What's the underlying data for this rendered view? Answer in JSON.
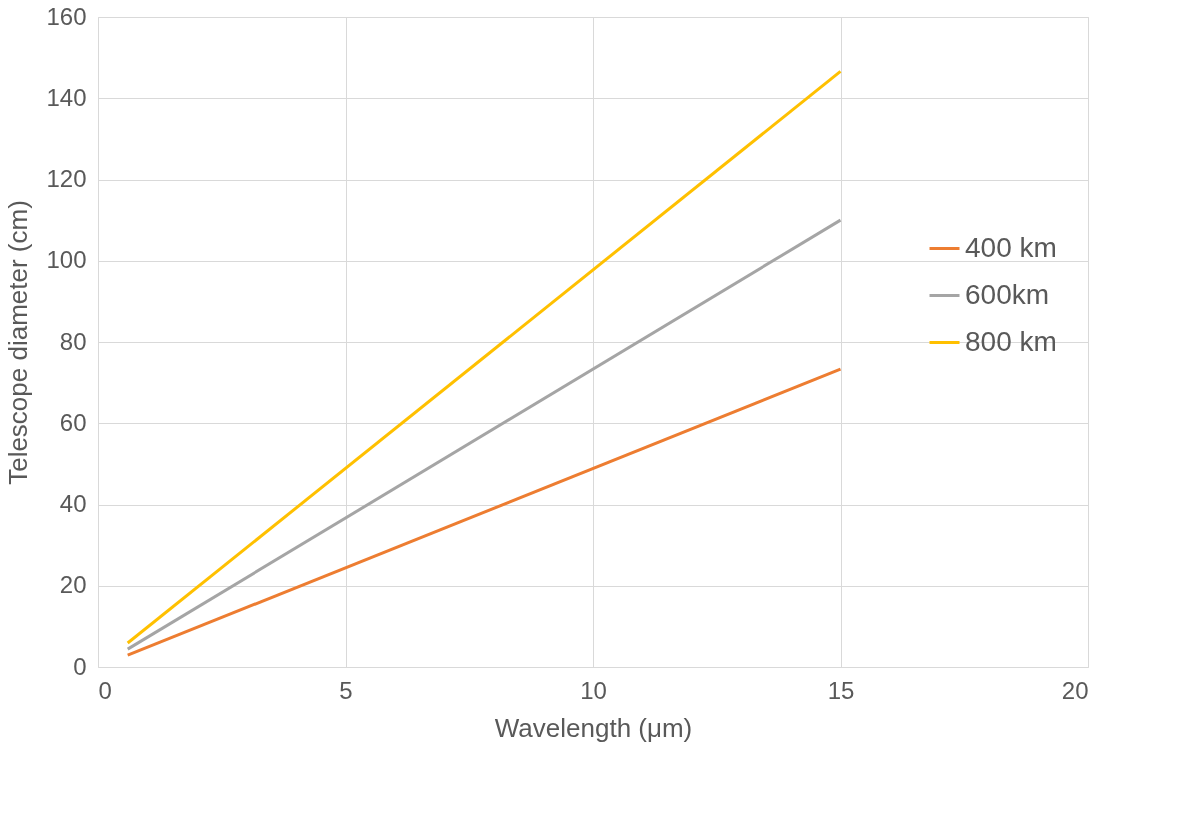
{
  "chart_data": {
    "type": "line",
    "xlabel": "Wavelength (μm)",
    "ylabel": "Telescope diameter (cm)",
    "x": [
      0.6,
      15
    ],
    "series": [
      {
        "name": "400 km",
        "color": "#ed7d31",
        "values": [
          2.9,
          73.3
        ]
      },
      {
        "name": "600km",
        "color": "#a5a5a5",
        "values": [
          4.4,
          110
        ]
      },
      {
        "name": "800 km",
        "color": "#ffc000",
        "values": [
          5.9,
          146.6
        ]
      }
    ],
    "xlim": [
      0,
      20
    ],
    "xticks": [
      0,
      5,
      10,
      15,
      20
    ],
    "ylim": [
      0,
      160
    ],
    "yticks": [
      0,
      20,
      40,
      60,
      80,
      100,
      120,
      140,
      160
    ],
    "grid": true,
    "legend": "right",
    "marker": "none",
    "line_style": "solid"
  }
}
